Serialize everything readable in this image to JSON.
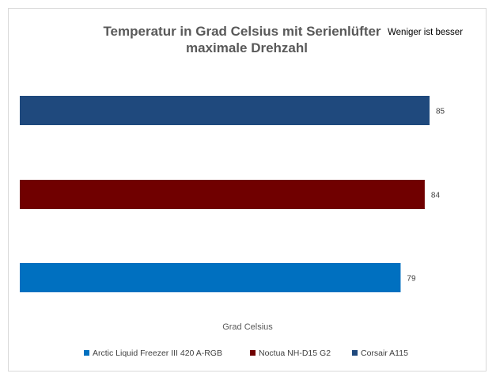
{
  "chart_data": {
    "type": "bar",
    "orientation": "horizontal",
    "title_lines": [
      "Temperatur in Grad Celsius mit Serienlüfter",
      "maximale Drehzahl"
    ],
    "note": "Weniger ist besser",
    "xlabel": "Grad Celsius",
    "xlim": [
      0,
      85
    ],
    "grid": false,
    "legend_position": "bottom",
    "series": [
      {
        "name": "Corsair A115",
        "value": 85,
        "label": "85",
        "color": "#1f497d"
      },
      {
        "name": "Noctua NH-D15 G2",
        "value": 84,
        "label": "84",
        "color": "#700000"
      },
      {
        "name": "Arctic Liquid Freezer III 420 A-RGB",
        "value": 79,
        "label": "79",
        "color": "#0070c0"
      }
    ],
    "legend_order": [
      "Arctic Liquid Freezer III 420 A-RGB",
      "Noctua NH-D15 G2",
      "Corsair A115"
    ]
  }
}
